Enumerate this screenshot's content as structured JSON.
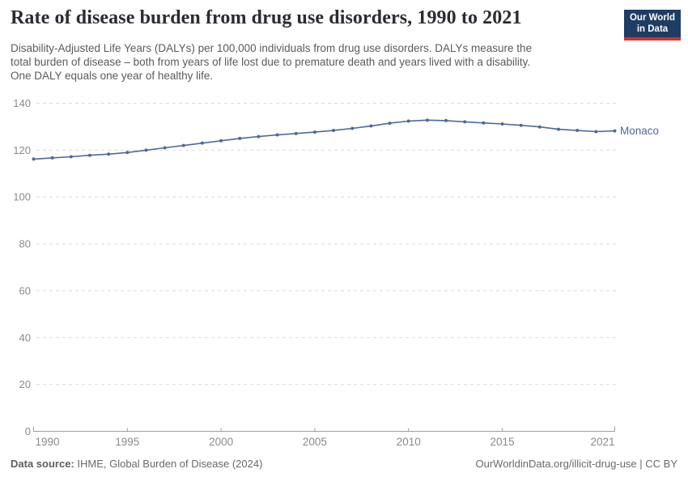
{
  "header": {
    "title": "Rate of disease burden from drug use disorders, 1990 to 2021",
    "subtitle_lines": [
      "Disability-Adjusted Life Years (DALYs) per 100,000 individuals from drug use disorders. DALYs measure the",
      "total burden of disease – both from years of life lost due to premature death and years lived with a disability.",
      "One DALY equals one year of healthy life."
    ],
    "logo": {
      "line1": "Our World",
      "line2": "in Data"
    }
  },
  "footer": {
    "source_label": "Data source:",
    "source_text": " IHME, Global Burden of Disease (2024)",
    "url_text": "OurWorldinData.org/illicit-drug-use",
    "separator": " | ",
    "license_text": "CC BY"
  },
  "colors": {
    "series_line": "#4C6A9C",
    "logo_background": "#1d3d63",
    "logo_stripe": "#d0342a",
    "gridline": "#dcdcdc",
    "axis_line": "#9e9e9e",
    "tick_label": "#8a8a8a",
    "title_text": "#2b2b33",
    "subtitle_text": "#5b5b5b",
    "footer_text": "#696970"
  },
  "chart_data": {
    "type": "line",
    "title": "Rate of disease burden from drug use disorders, 1990 to 2021",
    "xlabel": "",
    "ylabel": "DALYs per 100,000 individuals",
    "xlim": [
      1990,
      2021
    ],
    "ylim": [
      0,
      140
    ],
    "x_ticks": [
      1990,
      1995,
      2000,
      2005,
      2010,
      2015,
      2021
    ],
    "y_ticks": [
      0,
      20,
      40,
      60,
      80,
      100,
      120,
      140
    ],
    "grid": "horizontal-dashed",
    "legend_position": "end-of-line-label",
    "series": [
      {
        "name": "Monaco",
        "color": "#4C6A9C",
        "x": [
          1990,
          1991,
          1992,
          1993,
          1994,
          1995,
          1996,
          1997,
          1998,
          1999,
          2000,
          2001,
          2002,
          2003,
          2004,
          2005,
          2006,
          2007,
          2008,
          2009,
          2010,
          2011,
          2012,
          2013,
          2014,
          2015,
          2016,
          2017,
          2018,
          2019,
          2020,
          2021
        ],
        "values": [
          116.2,
          116.7,
          117.2,
          117.8,
          118.3,
          119.0,
          120.0,
          121.0,
          122.0,
          123.0,
          124.0,
          125.0,
          125.8,
          126.5,
          127.1,
          127.7,
          128.4,
          129.3,
          130.3,
          131.5,
          132.4,
          132.8,
          132.6,
          132.1,
          131.6,
          131.2,
          130.6,
          129.9,
          128.9,
          128.4,
          127.9,
          128.2
        ]
      }
    ]
  }
}
